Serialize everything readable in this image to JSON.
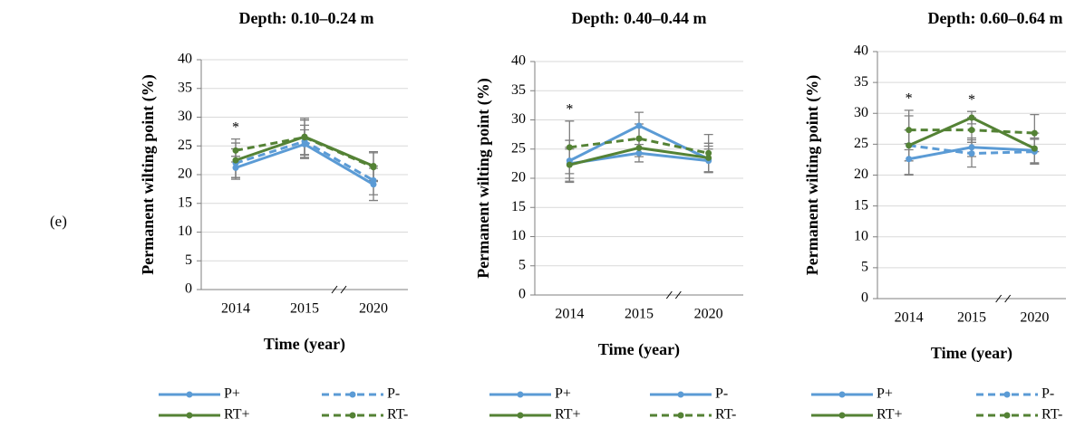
{
  "panel_label": "(e)",
  "chart_data": [
    {
      "type": "line",
      "title": "Depth: 0.10–0.24 m",
      "y_label": "Permanent wilting point (%)",
      "x_label": "Time (year)",
      "categories": [
        "2014",
        "2015",
        "2020"
      ],
      "ylim": [
        0,
        40
      ],
      "yticks": [
        0,
        5,
        10,
        15,
        20,
        25,
        30,
        35,
        40
      ],
      "grid": true,
      "asterisks": [
        "*",
        null,
        null
      ],
      "series": [
        {
          "name": "P+",
          "color": "#5b9bd5",
          "dashed": false,
          "values": [
            21.2,
            25.3,
            18.3
          ],
          "errors": [
            2.0,
            2.5,
            2.8
          ]
        },
        {
          "name": "P-",
          "color": "#5b9bd5",
          "dashed": true,
          "values": [
            22.0,
            25.8,
            19.0
          ],
          "errors": [
            2.5,
            2.8,
            2.5
          ]
        },
        {
          "name": "RT+",
          "color": "#548235",
          "dashed": false,
          "values": [
            22.5,
            26.6,
            21.5
          ],
          "errors": [
            3.0,
            3.2,
            2.5
          ]
        },
        {
          "name": "RT-",
          "color": "#548235",
          "dashed": true,
          "values": [
            24.2,
            26.5,
            21.3
          ],
          "errors": [
            2.0,
            3.0,
            2.5
          ]
        }
      ]
    },
    {
      "type": "line",
      "title": "Depth: 0.40–0.44 m",
      "y_label": "Permanent wilting point (%)",
      "x_label": "Time (year)",
      "categories": [
        "2014",
        "2015",
        "2020"
      ],
      "ylim": [
        0,
        40
      ],
      "yticks": [
        0,
        5,
        10,
        15,
        20,
        25,
        30,
        35,
        40
      ],
      "grid": true,
      "asterisks": [
        "*",
        null,
        null
      ],
      "series": [
        {
          "name": "P+",
          "color": "#5b9bd5",
          "dashed": false,
          "values": [
            23.0,
            29.0,
            23.3
          ],
          "errors": [
            3.5,
            2.3,
            2.2
          ]
        },
        {
          "name": "P-",
          "color": "#5b9bd5",
          "dashed": false,
          "values": [
            22.5,
            24.3,
            23.0
          ],
          "errors": [
            2.5,
            1.5,
            2.0
          ]
        },
        {
          "name": "RT+",
          "color": "#548235",
          "dashed": false,
          "values": [
            22.3,
            25.2,
            23.5
          ],
          "errors": [
            3.0,
            1.5,
            2.5
          ]
        },
        {
          "name": "RT-",
          "color": "#548235",
          "dashed": true,
          "values": [
            25.3,
            26.8,
            24.3
          ],
          "errors": [
            4.5,
            2.5,
            3.2
          ]
        }
      ]
    },
    {
      "type": "line",
      "title": "Depth: 0.60–0.64 m",
      "y_label": "Permanent wilting point (%)",
      "x_label": "Time (year)",
      "categories": [
        "2014",
        "2015",
        "2020"
      ],
      "ylim": [
        0,
        40
      ],
      "yticks": [
        0,
        5,
        10,
        15,
        20,
        25,
        30,
        35,
        40
      ],
      "grid": true,
      "asterisks": [
        "*",
        "*",
        null
      ],
      "series": [
        {
          "name": "P+",
          "color": "#5b9bd5",
          "dashed": false,
          "values": [
            22.6,
            24.5,
            24.0
          ],
          "errors": [
            2.5,
            1.5,
            2.0
          ]
        },
        {
          "name": "P-",
          "color": "#5b9bd5",
          "dashed": true,
          "values": [
            24.8,
            23.5,
            23.8
          ],
          "errors": [
            2.5,
            2.2,
            2.0
          ]
        },
        {
          "name": "RT+",
          "color": "#548235",
          "dashed": false,
          "values": [
            24.8,
            29.3,
            24.3
          ],
          "errors": [
            4.8,
            1.0,
            2.5
          ]
        },
        {
          "name": "RT-",
          "color": "#548235",
          "dashed": true,
          "values": [
            27.3,
            27.3,
            26.8
          ],
          "errors": [
            3.2,
            2.0,
            3.0
          ]
        }
      ]
    }
  ]
}
